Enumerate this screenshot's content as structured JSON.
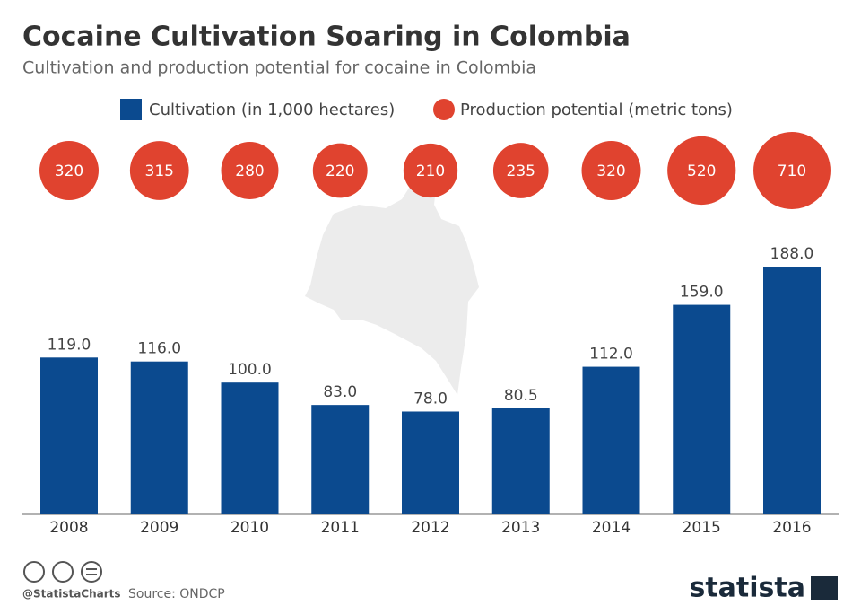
{
  "chart_data": {
    "type": "bar",
    "title": "Cocaine Cultivation Soaring in Colombia",
    "subtitle": "Cultivation and production potential for cocaine in Colombia",
    "categories": [
      "2008",
      "2009",
      "2010",
      "2011",
      "2012",
      "2013",
      "2014",
      "2015",
      "2016"
    ],
    "series": [
      {
        "name": "Cultivation (in 1,000 hectares)",
        "color": "#0b4a8f",
        "values": [
          119.0,
          116.0,
          100.0,
          83.0,
          78.0,
          80.5,
          112.0,
          159.0,
          188.0
        ],
        "value_labels": [
          "119.0",
          "116.0",
          "100.0",
          "83.0",
          "78.0",
          "80.5",
          "112.0",
          "159.0",
          "188.0"
        ]
      },
      {
        "name": "Production potential (metric tons)",
        "color": "#e0432f",
        "values": [
          320,
          315,
          280,
          220,
          210,
          235,
          320,
          520,
          710
        ]
      }
    ],
    "handle": "@StatistaCharts",
    "source": "Source: ONDCP",
    "brand": "statista"
  }
}
